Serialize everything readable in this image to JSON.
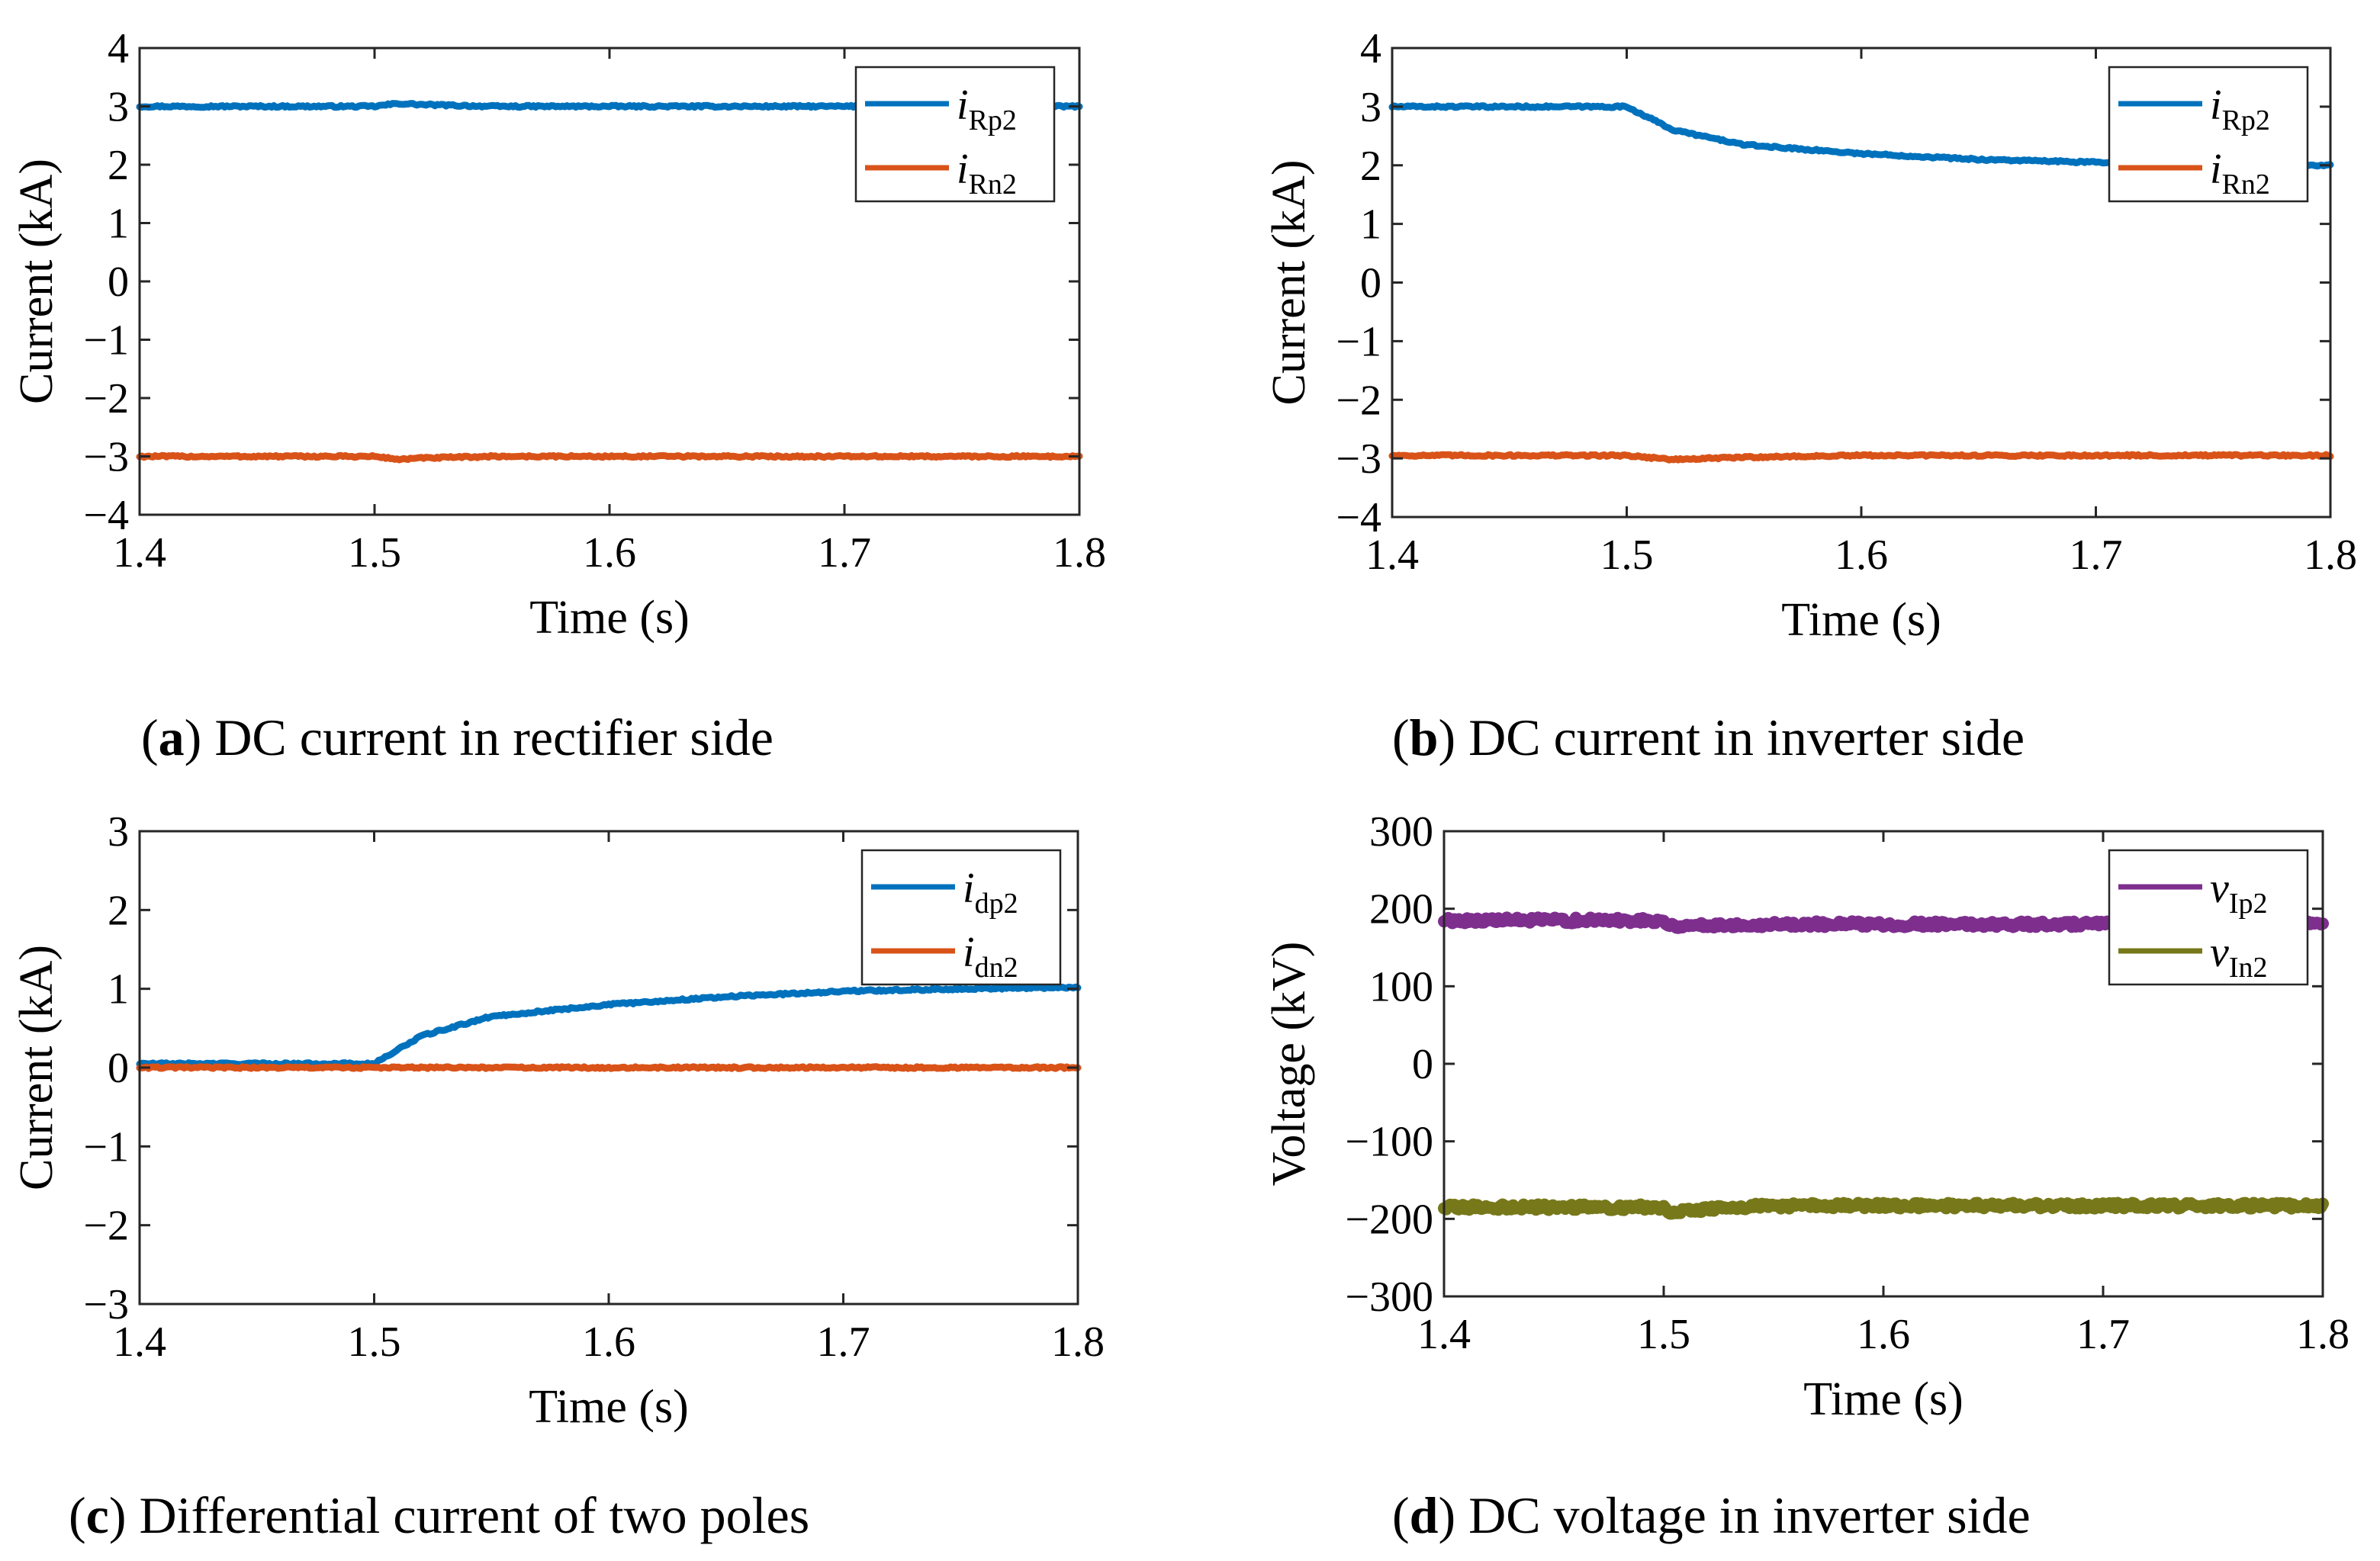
{
  "chart_data": [
    {
      "id": "a",
      "type": "line",
      "caption_label": "a",
      "caption_text": " DC current in rectifier side",
      "xlabel": "Time (s)",
      "ylabel": "Current (kA)",
      "xlim": [
        1.4,
        1.8
      ],
      "ylim": [
        -4,
        4
      ],
      "xticks": [
        1.4,
        1.5,
        1.6,
        1.7,
        1.8
      ],
      "xtick_labels": [
        "1.4",
        "1.5",
        "1.6",
        "1.7",
        "1.8"
      ],
      "yticks": [
        -4,
        -3,
        -2,
        -1,
        0,
        1,
        2,
        3,
        4
      ],
      "ytick_labels": [
        "−4",
        "−3",
        "−2",
        "−1",
        "0",
        "1",
        "2",
        "3",
        "4"
      ],
      "series": [
        {
          "name_main": "i",
          "name_sub": "Rp2",
          "color": "#0072BD",
          "x": [
            1.4,
            1.45,
            1.5,
            1.51,
            1.52,
            1.55,
            1.6,
            1.7,
            1.8
          ],
          "y": [
            3.0,
            3.0,
            3.0,
            3.05,
            3.03,
            3.0,
            3.0,
            3.0,
            3.0
          ]
        },
        {
          "name_main": "i",
          "name_sub": "Rn2",
          "color": "#D95319",
          "x": [
            1.4,
            1.45,
            1.5,
            1.51,
            1.52,
            1.55,
            1.6,
            1.7,
            1.8
          ],
          "y": [
            -3.0,
            -3.0,
            -3.0,
            -3.05,
            -3.03,
            -3.0,
            -3.0,
            -3.0,
            -3.0
          ]
        }
      ]
    },
    {
      "id": "b",
      "type": "line",
      "caption_label": "b",
      "caption_text": " DC current in inverter side",
      "xlabel": "Time (s)",
      "ylabel": "Current (kA)",
      "xlim": [
        1.4,
        1.8
      ],
      "ylim": [
        -4,
        4
      ],
      "xticks": [
        1.4,
        1.5,
        1.6,
        1.7,
        1.8
      ],
      "xtick_labels": [
        "1.4",
        "1.5",
        "1.6",
        "1.7",
        "1.8"
      ],
      "yticks": [
        -4,
        -3,
        -2,
        -1,
        0,
        1,
        2,
        3,
        4
      ],
      "ytick_labels": [
        "−4",
        "−3",
        "−2",
        "−1",
        "0",
        "1",
        "2",
        "3",
        "4"
      ],
      "series": [
        {
          "name_main": "i",
          "name_sub": "Rp2",
          "color": "#0072BD",
          "x": [
            1.4,
            1.45,
            1.5,
            1.52,
            1.55,
            1.6,
            1.65,
            1.7,
            1.75,
            1.8
          ],
          "y": [
            3.0,
            3.0,
            3.0,
            2.6,
            2.35,
            2.2,
            2.1,
            2.05,
            2.0,
            2.0
          ]
        },
        {
          "name_main": "i",
          "name_sub": "Rn2",
          "color": "#D95319",
          "x": [
            1.4,
            1.45,
            1.5,
            1.52,
            1.55,
            1.6,
            1.7,
            1.8
          ],
          "y": [
            -2.95,
            -2.95,
            -2.95,
            -3.02,
            -2.98,
            -2.95,
            -2.95,
            -2.95
          ]
        }
      ]
    },
    {
      "id": "c",
      "type": "line",
      "caption_label": "c",
      "caption_text": " Differential current of two poles",
      "xlabel": "Time (s)",
      "ylabel": "Current (kA)",
      "xlim": [
        1.4,
        1.8
      ],
      "ylim": [
        -3,
        3
      ],
      "xticks": [
        1.4,
        1.5,
        1.6,
        1.7,
        1.8
      ],
      "xtick_labels": [
        "1.4",
        "1.5",
        "1.6",
        "1.7",
        "1.8"
      ],
      "yticks": [
        -3,
        -2,
        -1,
        0,
        1,
        2,
        3
      ],
      "ytick_labels": [
        "−3",
        "−2",
        "−1",
        "0",
        "1",
        "2",
        "3"
      ],
      "series": [
        {
          "name_main": "i",
          "name_sub": "dp2",
          "color": "#0072BD",
          "x": [
            1.4,
            1.45,
            1.5,
            1.52,
            1.55,
            1.6,
            1.65,
            1.7,
            1.75,
            1.8
          ],
          "y": [
            0.05,
            0.05,
            0.05,
            0.4,
            0.65,
            0.8,
            0.9,
            0.97,
            1.0,
            1.02
          ]
        },
        {
          "name_main": "i",
          "name_sub": "dn2",
          "color": "#D95319",
          "x": [
            1.4,
            1.5,
            1.6,
            1.7,
            1.8
          ],
          "y": [
            0.0,
            0.0,
            0.0,
            0.0,
            0.0
          ]
        }
      ]
    },
    {
      "id": "d",
      "type": "line",
      "caption_label": "d",
      "caption_text": " DC voltage in inverter side",
      "xlabel": "Time (s)",
      "ylabel": "Voltage (kV)",
      "xlim": [
        1.4,
        1.8
      ],
      "ylim": [
        -300,
        300
      ],
      "xticks": [
        1.4,
        1.5,
        1.6,
        1.7,
        1.8
      ],
      "xtick_labels": [
        "1.4",
        "1.5",
        "1.6",
        "1.7",
        "1.8"
      ],
      "yticks": [
        -300,
        -200,
        -100,
        0,
        100,
        200,
        300
      ],
      "ytick_labels": [
        "−300",
        "−200",
        "−100",
        "0",
        "100",
        "200",
        "300"
      ],
      "series": [
        {
          "name_main": "v",
          "name_sub": "Ip2",
          "color": "#7E2F8E",
          "x": [
            1.4,
            1.45,
            1.5,
            1.502,
            1.55,
            1.6,
            1.7,
            1.8
          ],
          "y": [
            185,
            185,
            185,
            178,
            180,
            180,
            180,
            180
          ]
        },
        {
          "name_main": "v",
          "name_sub": "In2",
          "color": "#77781A",
          "x": [
            1.4,
            1.45,
            1.5,
            1.502,
            1.55,
            1.6,
            1.7,
            1.8
          ],
          "y": [
            -185,
            -185,
            -185,
            -190,
            -183,
            -183,
            -183,
            -183
          ]
        }
      ]
    }
  ]
}
